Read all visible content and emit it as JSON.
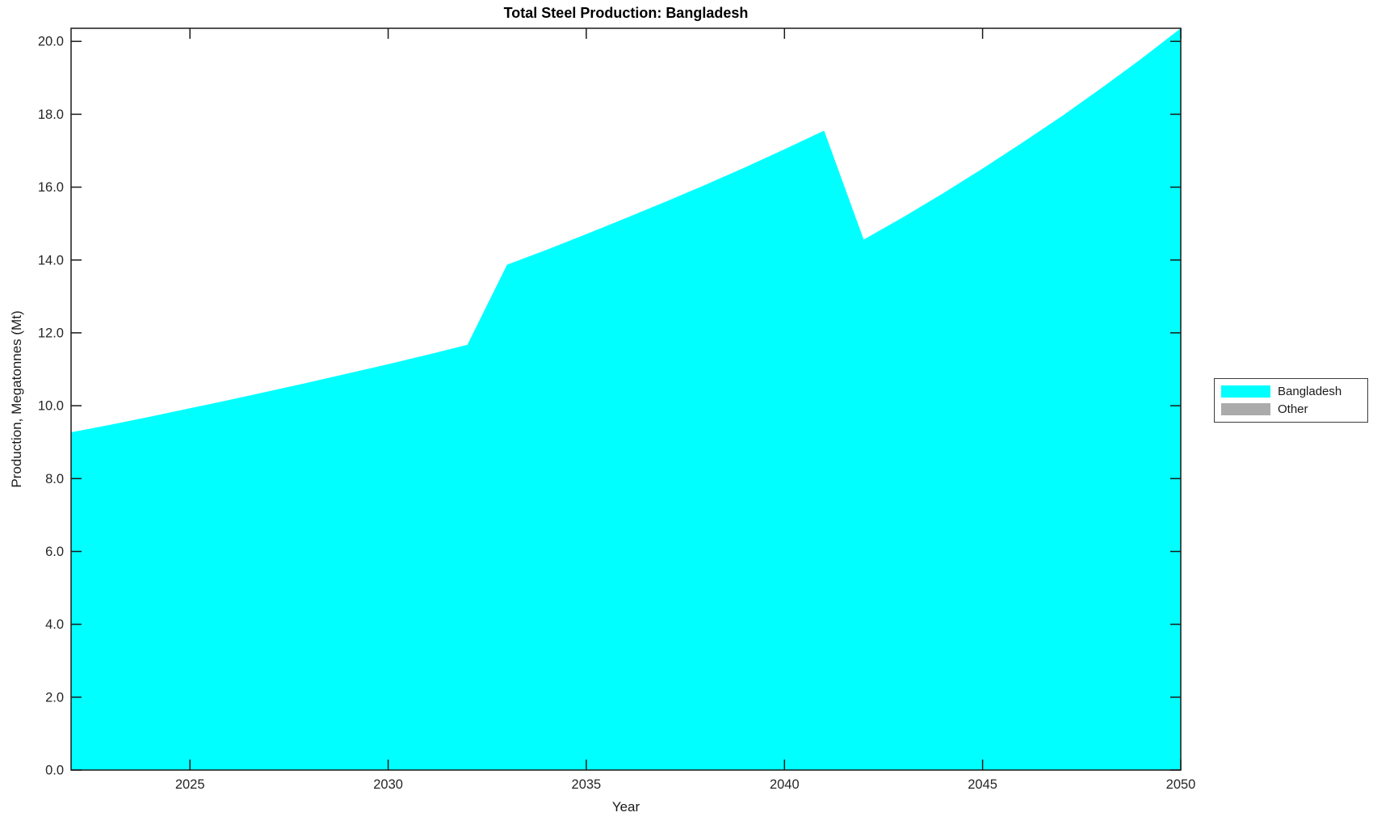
{
  "chart_data": {
    "type": "area",
    "title": "Total Steel Production: Bangladesh",
    "xlabel": "Year",
    "ylabel": "Production, Megatonnes (Mt)",
    "xlim": [
      2022,
      2050
    ],
    "ylim": [
      0,
      20.36
    ],
    "x_ticks": [
      2025,
      2030,
      2035,
      2040,
      2045,
      2050
    ],
    "y_ticks": [
      0,
      2,
      4,
      6,
      8,
      10,
      12,
      14,
      16,
      18,
      20
    ],
    "grid": false,
    "x": [
      2022,
      2023,
      2024,
      2025,
      2026,
      2027,
      2028,
      2029,
      2030,
      2031,
      2032,
      2033,
      2034,
      2035,
      2036,
      2037,
      2038,
      2039,
      2040,
      2041,
      2042,
      2043,
      2044,
      2045,
      2046,
      2047,
      2048,
      2049,
      2050
    ],
    "series": [
      {
        "name": "Bangladesh",
        "color": "#00ffff",
        "values": [
          9.27,
          9.48,
          9.7,
          9.93,
          10.16,
          10.4,
          10.64,
          10.89,
          11.14,
          11.4,
          11.67,
          13.87,
          14.28,
          14.71,
          15.15,
          15.6,
          16.06,
          16.54,
          17.04,
          17.55,
          14.56,
          15.18,
          15.83,
          16.51,
          17.22,
          17.95,
          18.72,
          19.52,
          20.36
        ]
      }
    ],
    "legend": {
      "position": "right",
      "entries": [
        {
          "label": "Bangladesh",
          "color": "#00ffff"
        },
        {
          "label": "Other",
          "color": "#ababab"
        }
      ]
    },
    "axis_color": "#1a1a1a",
    "tick_label_color": "#262626"
  }
}
